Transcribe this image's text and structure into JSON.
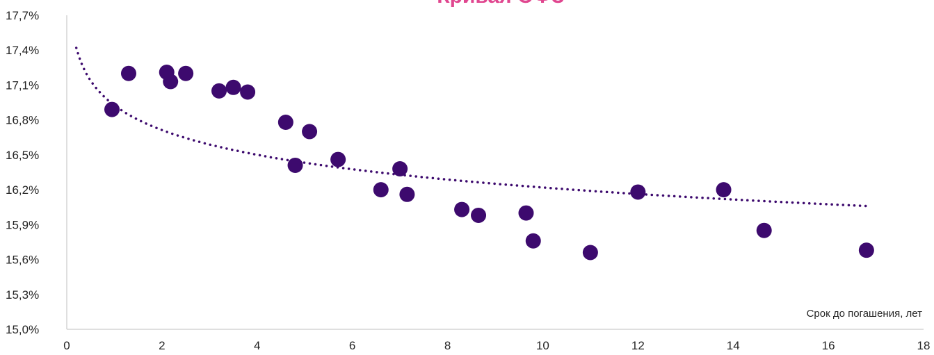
{
  "chart_data": {
    "type": "scatter",
    "title": "Кривая ОФЗ",
    "xlabel": "Срок до погашения, лет",
    "ylabel": "",
    "xlim": [
      0,
      18
    ],
    "ylim": [
      15.0,
      17.7
    ],
    "x_ticks": [
      "0",
      "2",
      "4",
      "6",
      "8",
      "10",
      "12",
      "14",
      "16",
      "18"
    ],
    "y_ticks": [
      "15,0%",
      "15,3%",
      "15,6%",
      "15,9%",
      "16,2%",
      "16,5%",
      "16,8%",
      "17,1%",
      "17,4%",
      "17,7%"
    ],
    "grid": false,
    "legend": "none",
    "colors": {
      "points": "#3d0a6e",
      "trend": "#3d0a6e",
      "title": "#e0468f",
      "axis": "#bfbfbf"
    },
    "series": [
      {
        "values": [
          {
            "x": 0.95,
            "y": 16.89
          },
          {
            "x": 1.3,
            "y": 17.2
          },
          {
            "x": 2.1,
            "y": 17.21
          },
          {
            "x": 2.18,
            "y": 17.13
          },
          {
            "x": 2.5,
            "y": 17.2
          },
          {
            "x": 3.2,
            "y": 17.05
          },
          {
            "x": 3.5,
            "y": 17.08
          },
          {
            "x": 3.8,
            "y": 17.04
          },
          {
            "x": 4.6,
            "y": 16.78
          },
          {
            "x": 4.8,
            "y": 16.41
          },
          {
            "x": 5.1,
            "y": 16.7
          },
          {
            "x": 5.7,
            "y": 16.46
          },
          {
            "x": 6.6,
            "y": 16.2
          },
          {
            "x": 7.0,
            "y": 16.38
          },
          {
            "x": 7.15,
            "y": 16.16
          },
          {
            "x": 8.3,
            "y": 16.03
          },
          {
            "x": 8.65,
            "y": 15.98
          },
          {
            "x": 9.65,
            "y": 16.0
          },
          {
            "x": 9.8,
            "y": 15.76
          },
          {
            "x": 11.0,
            "y": 15.66
          },
          {
            "x": 12.0,
            "y": 16.18
          },
          {
            "x": 13.8,
            "y": 16.2
          },
          {
            "x": 14.65,
            "y": 15.85
          },
          {
            "x": 16.8,
            "y": 15.68
          }
        ]
      }
    ],
    "trendline": {
      "type": "logarithmic",
      "style": "dotted",
      "x_range": [
        0.2,
        16.8
      ],
      "points": [
        {
          "x": 0.2,
          "y": 17.42
        },
        {
          "x": 1.0,
          "y": 16.88
        },
        {
          "x": 4.0,
          "y": 16.53
        },
        {
          "x": 8.0,
          "y": 16.28
        },
        {
          "x": 12.0,
          "y": 16.16
        },
        {
          "x": 16.8,
          "y": 16.06
        }
      ]
    }
  }
}
